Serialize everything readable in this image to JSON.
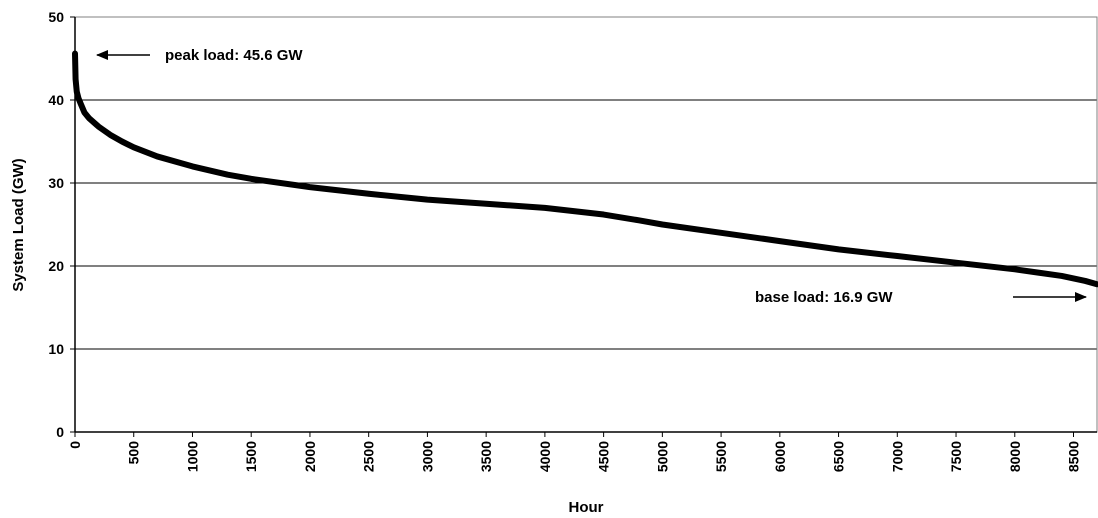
{
  "chart_data": {
    "type": "line",
    "title": "",
    "xlabel": "Hour",
    "ylabel": "System Load (GW)",
    "xlim": [
      0,
      8700
    ],
    "ylim": [
      0,
      50
    ],
    "x_ticks": [
      0,
      500,
      1000,
      1500,
      2000,
      2500,
      3000,
      3500,
      4000,
      4500,
      5000,
      5500,
      6000,
      6500,
      7000,
      7500,
      8000,
      8500
    ],
    "y_ticks": [
      0,
      10,
      20,
      30,
      40,
      50
    ],
    "grid": "horizontal",
    "legend": "none",
    "series": [
      {
        "color": "#000000",
        "x": [
          0,
          5,
          15,
          30,
          50,
          80,
          120,
          200,
          300,
          400,
          500,
          700,
          1000,
          1300,
          1500,
          2000,
          2500,
          3000,
          3500,
          4000,
          4500,
          4800,
          5000,
          5500,
          6000,
          6500,
          7000,
          7500,
          8000,
          8200,
          8400,
          8500,
          8600,
          8700
        ],
        "y": [
          45.6,
          42.5,
          41.0,
          40.2,
          39.5,
          38.5,
          37.8,
          36.8,
          35.8,
          35.0,
          34.3,
          33.2,
          32.0,
          31.0,
          30.5,
          29.5,
          28.7,
          28.0,
          27.5,
          27.0,
          26.2,
          25.5,
          25.0,
          24.0,
          23.0,
          22.0,
          21.2,
          20.4,
          19.6,
          19.2,
          18.8,
          18.5,
          18.2,
          17.8
        ]
      }
    ],
    "annotations": [
      {
        "text": "peak load: 45.6 GW",
        "arrow": "left"
      },
      {
        "text": "base load: 16.9 GW",
        "arrow": "right"
      }
    ]
  }
}
